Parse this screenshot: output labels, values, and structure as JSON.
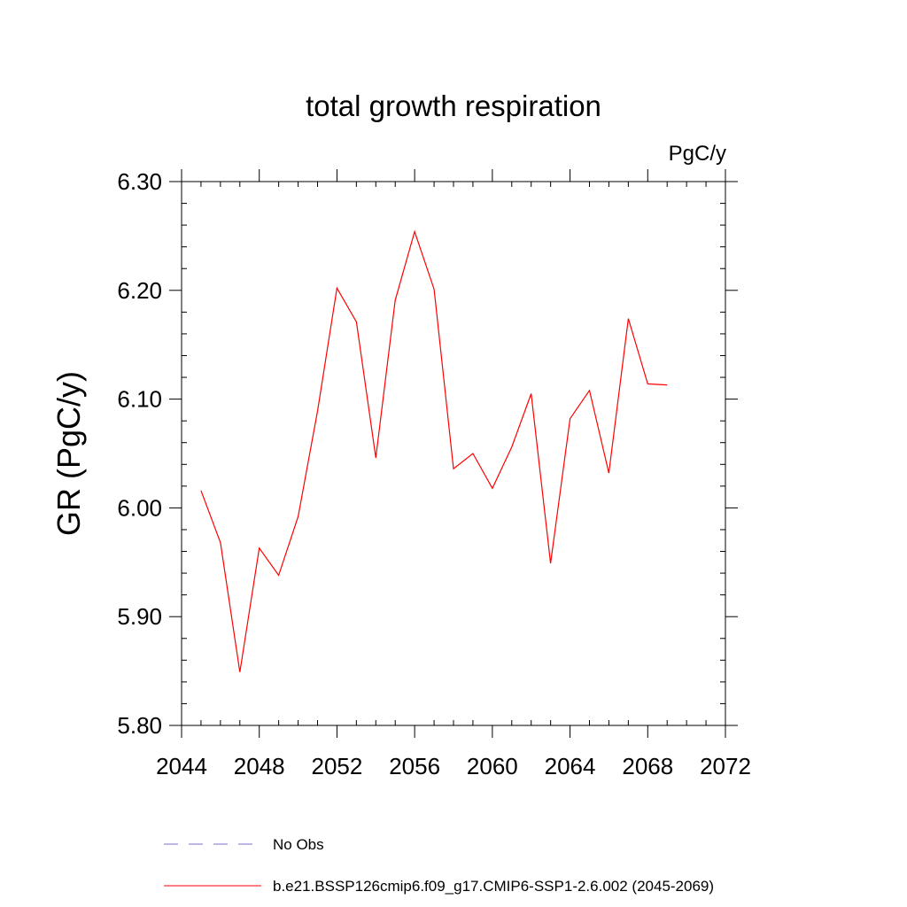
{
  "chart_data": {
    "type": "line",
    "title": "total growth respiration",
    "units": "PgC/y",
    "xlabel": "",
    "ylabel": "GR  (PgC/y)",
    "xlim": [
      2044,
      2072
    ],
    "ylim": [
      5.8,
      6.3
    ],
    "x_ticks": [
      "2044",
      "2048",
      "2052",
      "2056",
      "2060",
      "2064",
      "2068",
      "2072"
    ],
    "y_ticks": [
      "5.80",
      "5.90",
      "6.00",
      "6.10",
      "6.20",
      "6.30"
    ],
    "grid": false,
    "legend_position": "bottom",
    "series": [
      {
        "name": "b.e21.BSSP126cmip6.f09_g17.CMIP6-SSP1-2.6.002 (2045-2069)",
        "color": "#ff0000",
        "style": "solid",
        "x": [
          2045,
          2046,
          2047,
          2048,
          2049,
          2050,
          2051,
          2052,
          2053,
          2054,
          2055,
          2056,
          2057,
          2058,
          2059,
          2060,
          2061,
          2062,
          2063,
          2064,
          2065,
          2066,
          2067,
          2068,
          2069
        ],
        "values": [
          6.016,
          5.968,
          5.849,
          5.963,
          5.938,
          5.992,
          6.089,
          6.202,
          6.171,
          6.046,
          6.191,
          6.254,
          6.201,
          6.036,
          6.05,
          6.018,
          6.056,
          6.105,
          5.949,
          6.082,
          6.108,
          6.032,
          6.174,
          6.114,
          6.113
        ]
      }
    ],
    "legend": [
      {
        "label": "No Obs",
        "color": "#7b6fc9",
        "style": "dashed"
      },
      {
        "label": "b.e21.BSSP126cmip6.f09_g17.CMIP6-SSP1-2.6.002 (2045-2069)",
        "color": "#ff0000",
        "style": "solid"
      }
    ]
  }
}
